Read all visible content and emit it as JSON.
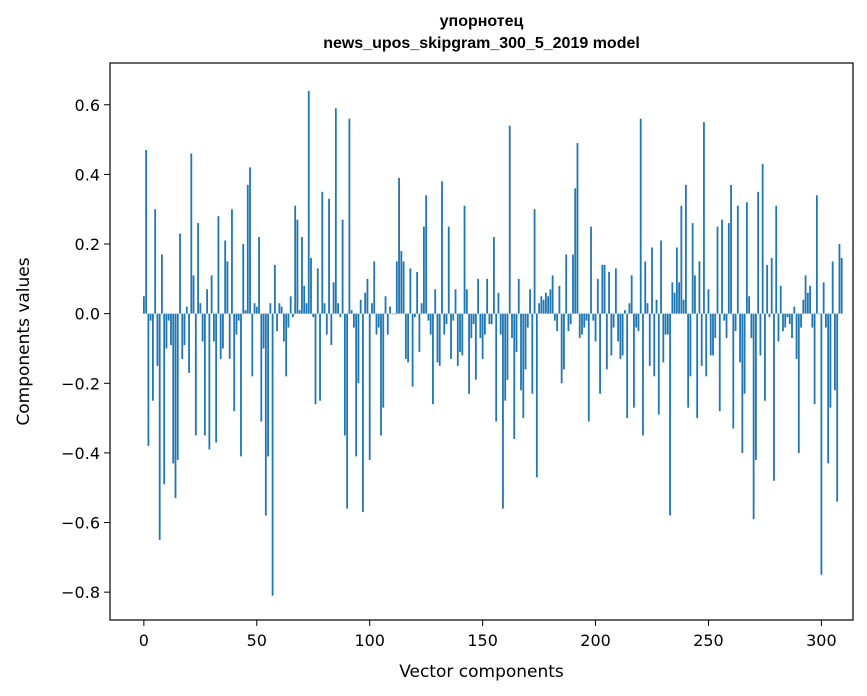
{
  "chart_data": {
    "type": "bar",
    "title": "упорнотец",
    "subtitle": "news_upos_skipgram_300_5_2019 model",
    "xlabel": "Vector components",
    "ylabel": "Components values",
    "xlim": [
      -15,
      314
    ],
    "ylim": [
      -0.88,
      0.72
    ],
    "xticks": [
      0,
      50,
      100,
      150,
      200,
      250,
      300
    ],
    "yticks": [
      -0.8,
      -0.6,
      -0.4,
      -0.2,
      0.0,
      0.2,
      0.4,
      0.6
    ],
    "ytick_labels": [
      "−0.8",
      "−0.6",
      "−0.4",
      "−0.2",
      "0.0",
      "0.2",
      "0.4",
      "0.6"
    ],
    "bar_color": "#1f77b4",
    "grid": false,
    "values": [
      0.05,
      0.47,
      -0.38,
      -0.02,
      -0.25,
      0.3,
      -0.15,
      -0.65,
      0.17,
      -0.49,
      -0.1,
      -0.02,
      -0.09,
      -0.43,
      -0.53,
      -0.42,
      0.23,
      -0.13,
      -0.09,
      0.02,
      -0.17,
      0.46,
      0.11,
      -0.35,
      0.26,
      0.03,
      -0.08,
      -0.35,
      0.07,
      -0.39,
      0.11,
      -0.08,
      -0.37,
      0.28,
      -0.13,
      -0.1,
      0.21,
      0.15,
      -0.13,
      0.3,
      -0.28,
      -0.06,
      -0.02,
      -0.41,
      0.2,
      0.01,
      0.37,
      0.42,
      -0.18,
      0.03,
      0.02,
      0.22,
      -0.31,
      -0.1,
      -0.58,
      -0.41,
      0.03,
      -0.81,
      0.14,
      -0.05,
      0.03,
      0.02,
      -0.08,
      -0.18,
      -0.04,
      0.05,
      -0.01,
      0.31,
      0.27,
      0.01,
      0.22,
      0.08,
      0.03,
      0.64,
      0.16,
      -0.01,
      -0.26,
      0.13,
      -0.25,
      0.35,
      0.03,
      -0.06,
      0.33,
      -0.09,
      0.09,
      0.59,
      0.03,
      -0.01,
      0.27,
      -0.35,
      -0.56,
      0.56,
      0.01,
      -0.04,
      -0.41,
      -0.2,
      0.04,
      -0.57,
      0.06,
      0.1,
      -0.42,
      0.03,
      0.15,
      -0.06,
      -0.04,
      -0.35,
      -0.27,
      0.05,
      -0.06,
      0.02,
      0.0,
      0.0,
      0.15,
      0.39,
      0.18,
      0.15,
      -0.13,
      -0.14,
      0.13,
      -0.21,
      -0.01,
      0.12,
      -0.11,
      0.03,
      0.25,
      0.34,
      -0.02,
      -0.06,
      -0.26,
      0.07,
      -0.14,
      -0.15,
      0.38,
      -0.06,
      -0.03,
      0.25,
      -0.13,
      -0.02,
      0.07,
      -0.15,
      -0.11,
      -0.12,
      0.31,
      0.07,
      -0.23,
      -0.07,
      -0.03,
      -0.19,
      0.1,
      -0.07,
      -0.13,
      -0.06,
      0.1,
      -0.03,
      -0.03,
      0.22,
      -0.31,
      0.06,
      -0.06,
      -0.56,
      -0.25,
      -0.19,
      0.54,
      -0.07,
      -0.36,
      -0.11,
      0.1,
      -0.22,
      -0.3,
      -0.16,
      -0.04,
      0.07,
      -0.23,
      0.3,
      -0.47,
      0.03,
      0.05,
      0.04,
      0.06,
      0.05,
      0.07,
      0.11,
      -0.02,
      -0.05,
      0.08,
      -0.2,
      -0.16,
      0.17,
      -0.05,
      -0.03,
      0.17,
      0.36,
      0.49,
      -0.07,
      -0.06,
      -0.04,
      -0.02,
      -0.31,
      0.25,
      -0.02,
      -0.08,
      0.1,
      -0.23,
      0.14,
      0.14,
      -0.16,
      0.12,
      -0.12,
      -0.04,
      0.13,
      -0.08,
      -0.13,
      -0.12,
      0.01,
      -0.3,
      0.03,
      0.11,
      -0.27,
      -0.04,
      -0.05,
      0.56,
      -0.35,
      0.15,
      0.03,
      -0.15,
      0.19,
      -0.18,
      0.04,
      -0.29,
      0.21,
      -0.14,
      -0.06,
      -0.06,
      -0.58,
      0.09,
      0.06,
      0.19,
      0.09,
      0.31,
      0.04,
      0.37,
      -0.27,
      -0.18,
      0.26,
      0.11,
      -0.3,
      0.15,
      -0.15,
      0.55,
      -0.18,
      0.07,
      -0.12,
      -0.12,
      -0.07,
      0.25,
      -0.28,
      0.27,
      -0.02,
      -0.07,
      0.26,
      0.37,
      -0.33,
      -0.05,
      0.31,
      -0.14,
      -0.4,
      -0.23,
      0.32,
      0.05,
      -0.07,
      -0.59,
      -0.42,
      0.35,
      -0.12,
      0.43,
      -0.25,
      0.14,
      -0.01,
      0.16,
      -0.48,
      0.31,
      -0.08,
      0.08,
      -0.05,
      -0.04,
      -0.01,
      -0.03,
      -0.07,
      0.02,
      -0.13,
      -0.4,
      -0.04,
      0.04,
      0.11,
      0.06,
      0.08,
      -0.04,
      -0.26,
      0.34,
      0.0,
      -0.75,
      0.09,
      -0.04,
      -0.43,
      -0.27,
      0.15,
      -0.22,
      -0.54,
      0.2,
      0.16
    ]
  }
}
